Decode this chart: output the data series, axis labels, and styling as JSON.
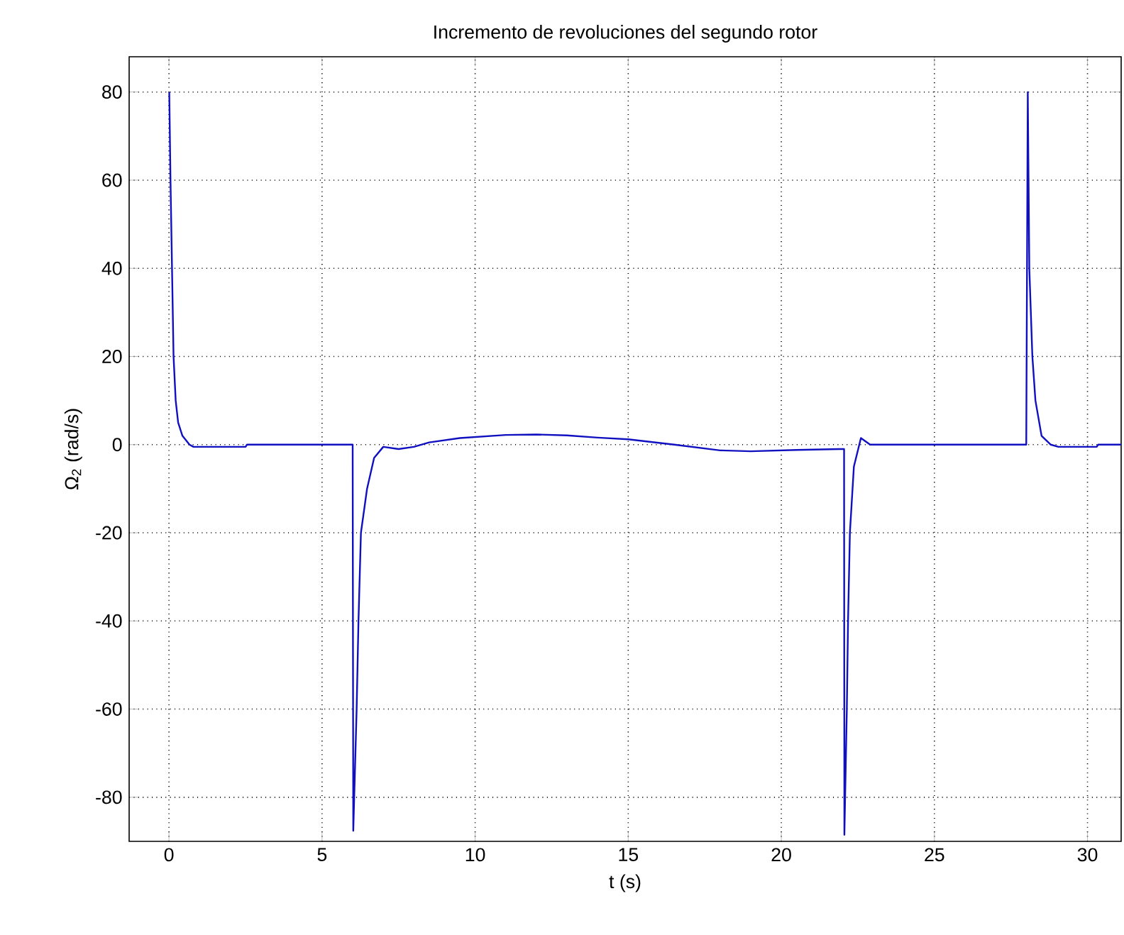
{
  "chart_data": {
    "type": "line",
    "title": "Incremento de revoluciones del segundo rotor",
    "xlabel": "t (s)",
    "ylabel": "Ω$_{2}$ (rad/s)",
    "xlim": [
      -1.3,
      31.1
    ],
    "ylim": [
      -90,
      88
    ],
    "xticks": [
      0,
      5,
      10,
      15,
      20,
      25,
      30
    ],
    "yticks": [
      -80,
      -60,
      -40,
      -20,
      0,
      20,
      40,
      60,
      80
    ],
    "grid": true,
    "line_style": "solid",
    "marker": "none",
    "series": [
      {
        "color": "#1010c0",
        "x": [
          0.01,
          0.05,
          0.1,
          0.15,
          0.22,
          0.3,
          0.44,
          0.67,
          0.8,
          1.5,
          2.5,
          2.55,
          6.0,
          6.02,
          6.13,
          6.19,
          6.27,
          6.47,
          6.7,
          7.0,
          7.5,
          8.0,
          8.5,
          9.5,
          11.0,
          12.0,
          13.0,
          14.0,
          15.0,
          16.5,
          18.0,
          19.0,
          20.5,
          21.9,
          22.05,
          22.06,
          22.14,
          22.18,
          22.24,
          22.37,
          22.6,
          22.9,
          24.0,
          28.0,
          28.05,
          28.1,
          28.2,
          28.3,
          28.5,
          28.8,
          29.05,
          30.3,
          30.35,
          31.1
        ],
        "values": [
          80,
          60,
          40,
          20,
          10,
          5,
          2,
          0,
          -0.5,
          -0.5,
          -0.5,
          0,
          0,
          -87.6,
          -60,
          -40,
          -20,
          -10,
          -3,
          -0.5,
          -1,
          -0.5,
          0.5,
          1.5,
          2.2,
          2.3,
          2.1,
          1.6,
          1.2,
          0,
          -1.3,
          -1.5,
          -1.2,
          -1,
          -1,
          -88.5,
          -60,
          -40,
          -20,
          -5,
          1.5,
          0,
          0,
          0,
          80,
          40,
          20,
          10,
          2,
          0,
          -0.5,
          -0.5,
          0,
          0
        ]
      }
    ]
  }
}
